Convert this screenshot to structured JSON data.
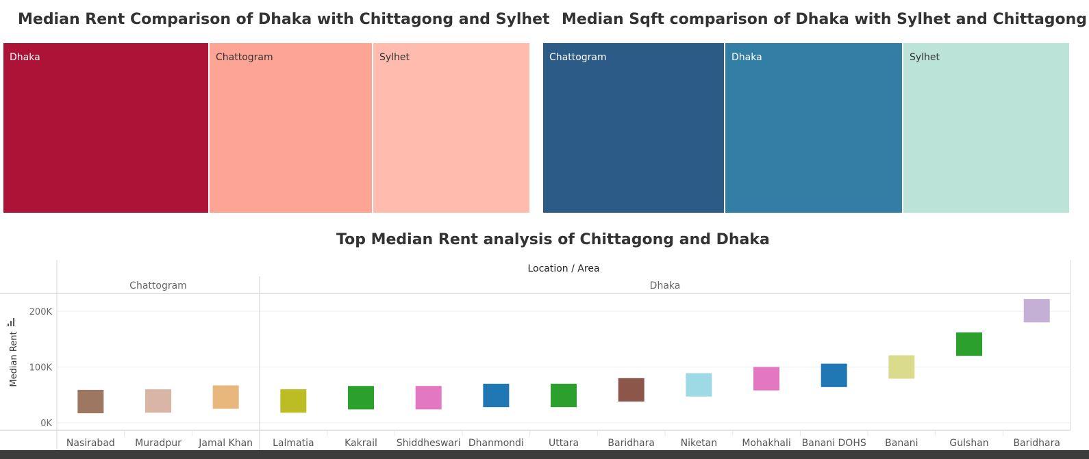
{
  "titles": {
    "rent_comparison": "Median Rent Comparison of  Dhaka with Chittagong and Sylhet",
    "sqft_comparison": "Median Sqft comparison of Dhaka with Sylhet and Chittagong",
    "top_rent": "Top Median Rent analysis of Chittagong and Dhaka"
  },
  "chart_data": [
    {
      "type": "treemap",
      "title": "Median Rent Comparison of  Dhaka with Chittagong and Sylhet",
      "categories": [
        "Dhaka",
        "Chattogram",
        "Sylhet"
      ],
      "relative_sizes": [
        0.389,
        0.311,
        0.3
      ],
      "colors": [
        "#ad1237",
        "#fea495",
        "#febbae"
      ],
      "label_colors": [
        "#ffffff",
        "#333333",
        "#333333"
      ]
    },
    {
      "type": "treemap",
      "title": "Median Sqft comparison of Dhaka with Sylhet and Chittagong",
      "categories": [
        "Chattogram",
        "Dhaka",
        "Sylhet"
      ],
      "relative_sizes": [
        0.344,
        0.339,
        0.317
      ],
      "colors": [
        "#2d5b88",
        "#337ea4",
        "#bce3d8"
      ],
      "label_colors": [
        "#ffffff",
        "#ffffff",
        "#333333"
      ]
    },
    {
      "type": "box",
      "title": "Top Median Rent analysis of Chittagong and Dhaka",
      "column_header": "Location / Area",
      "ylabel": "Median Rent",
      "ylim": [
        0,
        230000
      ],
      "yticks": [
        0,
        100000,
        200000
      ],
      "ytick_labels": [
        "0K",
        "100K",
        "200K"
      ],
      "groups": [
        {
          "name": "Chattogram",
          "areas": [
            {
              "label": "Nasirabad",
              "low": 17000,
              "high": 59000,
              "color": "#9e7762"
            },
            {
              "label": "Muradpur",
              "low": 18000,
              "high": 60000,
              "color": "#d8b5a5"
            },
            {
              "label": "Jamal Khan",
              "low": 25000,
              "high": 67000,
              "color": "#e8b77c"
            }
          ]
        },
        {
          "name": "Dhaka",
          "areas": [
            {
              "label": "Lalmatia",
              "low": 18000,
              "high": 60000,
              "color": "#bcbd22"
            },
            {
              "label": "Kakrail",
              "low": 24000,
              "high": 66000,
              "color": "#2ca02c"
            },
            {
              "label": "Shiddheswari",
              "low": 24000,
              "high": 66000,
              "color": "#e377c2"
            },
            {
              "label": "Dhanmondi",
              "low": 28000,
              "high": 70000,
              "color": "#1f77b4"
            },
            {
              "label": "Uttara",
              "low": 28000,
              "high": 70000,
              "color": "#2ca02c"
            },
            {
              "label": "Baridhara",
              "low": 38000,
              "high": 80000,
              "color": "#8c564b"
            },
            {
              "label": "Niketan",
              "low": 47000,
              "high": 89000,
              "color": "#9edae5"
            },
            {
              "label": "Mohakhali",
              "low": 58000,
              "high": 100000,
              "color": "#e377c2"
            },
            {
              "label": "Banani DOHS",
              "low": 64000,
              "high": 106000,
              "color": "#1f77b4"
            },
            {
              "label": "Banani",
              "low": 79000,
              "high": 121000,
              "color": "#dbdb8d"
            },
            {
              "label": "Gulshan",
              "low": 120000,
              "high": 162000,
              "color": "#2ca02c"
            },
            {
              "label": "Baridhara",
              "low": 180000,
              "high": 222000,
              "color": "#c5b0d5"
            }
          ]
        }
      ]
    }
  ]
}
